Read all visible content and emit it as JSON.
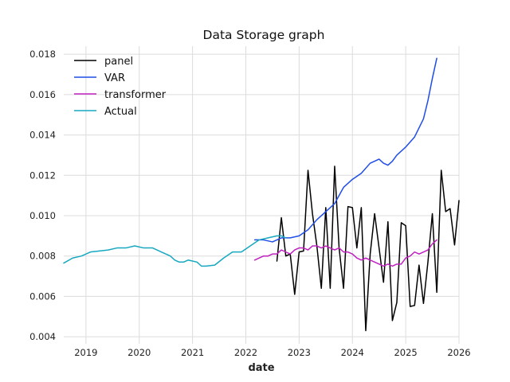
{
  "chart_data": {
    "type": "line",
    "title": "Data Storage graph",
    "xlabel": "date",
    "ylabel": "",
    "x_tick_labels": [
      "2019",
      "2020",
      "2021",
      "2022",
      "2023",
      "2024",
      "2025",
      "2026"
    ],
    "y_tick_labels": [
      "0.004",
      "0.006",
      "0.008",
      "0.010",
      "0.012",
      "0.014",
      "0.016",
      "0.018"
    ],
    "x_axis_range": [
      "2018-08",
      "2026-01"
    ],
    "ylim": [
      0.00365,
      0.0184
    ],
    "grid": true,
    "legend_position": "top-left",
    "series": [
      {
        "name": "panel",
        "color": "#000000",
        "points": [
          [
            "2022-08",
            0.00775
          ],
          [
            "2022-09",
            0.0099
          ],
          [
            "2022-10",
            0.008
          ],
          [
            "2022-11",
            0.0081
          ],
          [
            "2022-12",
            0.0061
          ],
          [
            "2023-01",
            0.0082
          ],
          [
            "2023-02",
            0.00825
          ],
          [
            "2023-03",
            0.01225
          ],
          [
            "2023-04",
            0.0101
          ],
          [
            "2023-05",
            0.0085
          ],
          [
            "2023-06",
            0.0064
          ],
          [
            "2023-07",
            0.0104
          ],
          [
            "2023-08",
            0.0064
          ],
          [
            "2023-09",
            0.01245
          ],
          [
            "2023-10",
            0.0084
          ],
          [
            "2023-11",
            0.0064
          ],
          [
            "2023-12",
            0.01045
          ],
          [
            "2024-01",
            0.0104
          ],
          [
            "2024-02",
            0.0084
          ],
          [
            "2024-03",
            0.0104
          ],
          [
            "2024-04",
            0.0043
          ],
          [
            "2024-05",
            0.0081
          ],
          [
            "2024-06",
            0.0101
          ],
          [
            "2024-07",
            0.0084
          ],
          [
            "2024-08",
            0.0067
          ],
          [
            "2024-09",
            0.0097
          ],
          [
            "2024-10",
            0.0048
          ],
          [
            "2024-11",
            0.0057
          ],
          [
            "2024-12",
            0.00965
          ],
          [
            "2025-01",
            0.0095
          ],
          [
            "2025-02",
            0.0055
          ],
          [
            "2025-03",
            0.00555
          ],
          [
            "2025-04",
            0.00755
          ],
          [
            "2025-05",
            0.00565
          ],
          [
            "2025-06",
            0.0077
          ],
          [
            "2025-07",
            0.0101
          ],
          [
            "2025-08",
            0.0062
          ],
          [
            "2025-09",
            0.01225
          ],
          [
            "2025-10",
            0.0102
          ],
          [
            "2025-11",
            0.01035
          ],
          [
            "2025-12",
            0.00855
          ],
          [
            "2026-01",
            0.01075
          ]
        ]
      },
      {
        "name": "VAR",
        "color": "#1f4de8",
        "points": [
          [
            "2022-03",
            0.0088
          ],
          [
            "2022-05",
            0.0088
          ],
          [
            "2022-07",
            0.0087
          ],
          [
            "2022-09",
            0.0089
          ],
          [
            "2022-11",
            0.0089
          ],
          [
            "2023-01",
            0.009
          ],
          [
            "2023-03",
            0.0093
          ],
          [
            "2023-05",
            0.0098
          ],
          [
            "2023-07",
            0.0102
          ],
          [
            "2023-09",
            0.0106
          ],
          [
            "2023-11",
            0.0114
          ],
          [
            "2024-01",
            0.0118
          ],
          [
            "2024-03",
            0.0121
          ],
          [
            "2024-05",
            0.0126
          ],
          [
            "2024-06",
            0.0127
          ],
          [
            "2024-07",
            0.0128
          ],
          [
            "2024-08",
            0.0126
          ],
          [
            "2024-09",
            0.0125
          ],
          [
            "2024-10",
            0.0127
          ],
          [
            "2024-11",
            0.013
          ],
          [
            "2025-01",
            0.0134
          ],
          [
            "2025-03",
            0.0139
          ],
          [
            "2025-05",
            0.0148
          ],
          [
            "2025-06",
            0.0157
          ],
          [
            "2025-07",
            0.0168
          ],
          [
            "2025-08",
            0.0178
          ]
        ]
      },
      {
        "name": "transformer",
        "color": "#c020c0",
        "points": [
          [
            "2022-03",
            0.0078
          ],
          [
            "2022-04",
            0.0079
          ],
          [
            "2022-05",
            0.008
          ],
          [
            "2022-06",
            0.008
          ],
          [
            "2022-07",
            0.0081
          ],
          [
            "2022-08",
            0.0081
          ],
          [
            "2022-09",
            0.0083
          ],
          [
            "2022-10",
            0.0082
          ],
          [
            "2022-11",
            0.0081
          ],
          [
            "2022-12",
            0.0083
          ],
          [
            "2023-01",
            0.0084
          ],
          [
            "2023-02",
            0.0084
          ],
          [
            "2023-03",
            0.0083
          ],
          [
            "2023-04",
            0.0085
          ],
          [
            "2023-05",
            0.0085
          ],
          [
            "2023-06",
            0.0084
          ],
          [
            "2023-07",
            0.0085
          ],
          [
            "2023-08",
            0.0084
          ],
          [
            "2023-09",
            0.0083
          ],
          [
            "2023-10",
            0.0084
          ],
          [
            "2023-11",
            0.0082
          ],
          [
            "2023-12",
            0.0082
          ],
          [
            "2024-01",
            0.0081
          ],
          [
            "2024-02",
            0.0079
          ],
          [
            "2024-03",
            0.0078
          ],
          [
            "2024-04",
            0.0079
          ],
          [
            "2024-05",
            0.0078
          ],
          [
            "2024-06",
            0.0077
          ],
          [
            "2024-07",
            0.0076
          ],
          [
            "2024-08",
            0.0075
          ],
          [
            "2024-09",
            0.0076
          ],
          [
            "2024-10",
            0.0075
          ],
          [
            "2024-11",
            0.0076
          ],
          [
            "2024-12",
            0.0076
          ],
          [
            "2025-01",
            0.0079
          ],
          [
            "2025-02",
            0.008
          ],
          [
            "2025-03",
            0.0082
          ],
          [
            "2025-04",
            0.0081
          ],
          [
            "2025-05",
            0.0082
          ],
          [
            "2025-06",
            0.0083
          ],
          [
            "2025-07",
            0.0086
          ],
          [
            "2025-08",
            0.0088
          ]
        ]
      },
      {
        "name": "Actual",
        "color": "#17a8c0",
        "points": [
          [
            "2018-08",
            0.00765
          ],
          [
            "2018-10",
            0.0079
          ],
          [
            "2018-12",
            0.008
          ],
          [
            "2019-02",
            0.0082
          ],
          [
            "2019-04",
            0.00825
          ],
          [
            "2019-06",
            0.0083
          ],
          [
            "2019-08",
            0.0084
          ],
          [
            "2019-10",
            0.0084
          ],
          [
            "2019-12",
            0.0085
          ],
          [
            "2020-02",
            0.0084
          ],
          [
            "2020-04",
            0.0084
          ],
          [
            "2020-06",
            0.0082
          ],
          [
            "2020-08",
            0.008
          ],
          [
            "2020-09",
            0.0078
          ],
          [
            "2020-10",
            0.0077
          ],
          [
            "2020-11",
            0.0077
          ],
          [
            "2020-12",
            0.0078
          ],
          [
            "2021-02",
            0.0077
          ],
          [
            "2021-03",
            0.0075
          ],
          [
            "2021-04",
            0.0075
          ],
          [
            "2021-06",
            0.00755
          ],
          [
            "2021-08",
            0.0079
          ],
          [
            "2021-10",
            0.0082
          ],
          [
            "2021-11",
            0.0082
          ],
          [
            "2021-12",
            0.0082
          ],
          [
            "2022-02",
            0.0085
          ],
          [
            "2022-04",
            0.0088
          ],
          [
            "2022-06",
            0.0089
          ],
          [
            "2022-08",
            0.009
          ],
          [
            "2022-09",
            0.009
          ],
          [
            "2022-10",
            0.0089
          ]
        ]
      }
    ]
  }
}
